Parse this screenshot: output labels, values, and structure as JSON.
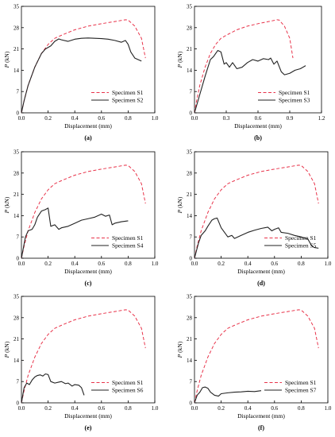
{
  "colors": {
    "reference_series": "#e8334a",
    "specimen_series": "#222222",
    "axes": "#000000"
  },
  "chart_data": [
    {
      "type": "line",
      "panel_label": "(a)",
      "xlabel": "Displacement (mm)",
      "ylabel_italic": "P",
      "ylabel_unit": " (kN)",
      "xlim": [
        0,
        1.0
      ],
      "ylim": [
        0,
        35
      ],
      "xticks": [
        "0.0",
        "0.2",
        "0.4",
        "0.6",
        "0.8",
        "1.0"
      ],
      "yticks": [
        "0",
        "7",
        "14",
        "21",
        "28",
        "35"
      ],
      "grid": false,
      "legend_position": "bottom-right",
      "series": [
        {
          "name": "Specimen S1",
          "style": "dashed",
          "x": [
            0,
            0.02,
            0.05,
            0.1,
            0.15,
            0.2,
            0.25,
            0.3,
            0.4,
            0.5,
            0.6,
            0.7,
            0.78,
            0.8,
            0.85,
            0.9,
            0.93
          ],
          "y": [
            0,
            4,
            9,
            15,
            19.5,
            22.5,
            24.5,
            25.5,
            27.3,
            28.5,
            29.3,
            30,
            30.6,
            30.5,
            28.5,
            24.5,
            18
          ]
        },
        {
          "name": "Specimen S2",
          "style": "solid",
          "x": [
            0,
            0.02,
            0.05,
            0.1,
            0.15,
            0.18,
            0.22,
            0.25,
            0.28,
            0.3,
            0.35,
            0.4,
            0.45,
            0.5,
            0.55,
            0.6,
            0.65,
            0.7,
            0.75,
            0.78,
            0.8,
            0.82,
            0.85,
            0.9
          ],
          "y": [
            0,
            4,
            9,
            15,
            19.5,
            21,
            22,
            23.5,
            24.3,
            24,
            23.5,
            24.2,
            24.5,
            24.6,
            24.5,
            24.4,
            24.2,
            23.8,
            23.2,
            23.8,
            22.5,
            20,
            18,
            17
          ]
        }
      ]
    },
    {
      "type": "line",
      "panel_label": "(b)",
      "xlabel": "Displacement (mm)",
      "ylabel_italic": "P",
      "ylabel_unit": " (kN)",
      "xlim": [
        0,
        1.2
      ],
      "ylim": [
        0,
        35
      ],
      "xticks": [
        "0.0",
        "0.3",
        "0.6",
        "0.9",
        "1.2"
      ],
      "yticks": [
        "0",
        "7",
        "14",
        "21",
        "28",
        "35"
      ],
      "grid": false,
      "legend_position": "bottom-right",
      "series": [
        {
          "name": "Specimen S1",
          "style": "dashed",
          "x": [
            0,
            0.02,
            0.05,
            0.1,
            0.15,
            0.2,
            0.25,
            0.3,
            0.4,
            0.5,
            0.6,
            0.7,
            0.78,
            0.8,
            0.85,
            0.9,
            0.93
          ],
          "y": [
            0,
            4,
            9,
            15,
            19.5,
            22.5,
            24.5,
            25.5,
            27.3,
            28.5,
            29.3,
            30,
            30.6,
            30.5,
            28.5,
            24.5,
            18
          ]
        },
        {
          "name": "Specimen S3",
          "style": "solid",
          "x": [
            0,
            0.05,
            0.1,
            0.15,
            0.18,
            0.2,
            0.22,
            0.25,
            0.28,
            0.3,
            0.33,
            0.36,
            0.4,
            0.45,
            0.5,
            0.55,
            0.6,
            0.65,
            0.7,
            0.72,
            0.75,
            0.78,
            0.82,
            0.85,
            0.9,
            0.95,
            1.0,
            1.05
          ],
          "y": [
            0,
            6,
            12,
            17.5,
            18.5,
            19.5,
            20.5,
            20,
            16,
            16.5,
            15,
            16.5,
            14.5,
            15,
            16.5,
            17.5,
            17,
            17.8,
            17.5,
            18,
            16,
            17,
            13.5,
            12.5,
            13,
            14,
            14.5,
            15.5
          ]
        }
      ]
    },
    {
      "type": "line",
      "panel_label": "(c)",
      "xlabel": "Displacement (mm)",
      "ylabel_italic": "P",
      "ylabel_unit": " (kN)",
      "xlim": [
        0,
        1.0
      ],
      "ylim": [
        0,
        35
      ],
      "xticks": [
        "0.0",
        "0.2",
        "0.4",
        "0.6",
        "0.8",
        "1.0"
      ],
      "yticks": [
        "0",
        "7",
        "14",
        "21",
        "28",
        "35"
      ],
      "grid": false,
      "legend_position": "bottom-right",
      "series": [
        {
          "name": "Specimen S1",
          "style": "dashed",
          "x": [
            0,
            0.02,
            0.05,
            0.1,
            0.15,
            0.2,
            0.25,
            0.3,
            0.4,
            0.5,
            0.6,
            0.7,
            0.78,
            0.8,
            0.85,
            0.9,
            0.93
          ],
          "y": [
            0,
            4,
            9,
            15,
            19.5,
            22.5,
            24.5,
            25.5,
            27.3,
            28.5,
            29.3,
            30,
            30.6,
            30.5,
            28.5,
            24.5,
            18
          ]
        },
        {
          "name": "Specimen S4",
          "style": "solid",
          "x": [
            0,
            0.03,
            0.05,
            0.08,
            0.1,
            0.12,
            0.15,
            0.18,
            0.2,
            0.22,
            0.25,
            0.28,
            0.3,
            0.35,
            0.4,
            0.45,
            0.5,
            0.55,
            0.6,
            0.63,
            0.66,
            0.68,
            0.7,
            0.75,
            0.8
          ],
          "y": [
            0,
            7,
            9,
            9.5,
            11,
            13.5,
            15.5,
            16,
            16.5,
            10.5,
            11,
            9.5,
            10,
            10.5,
            11.5,
            12.5,
            13,
            13.5,
            14.5,
            13.8,
            14.2,
            11,
            11.5,
            12,
            12.3
          ]
        }
      ]
    },
    {
      "type": "line",
      "panel_label": "(d)",
      "xlabel": "Displacement (mm)",
      "ylabel_italic": "P",
      "ylabel_unit": " (kN)",
      "xlim": [
        0,
        1.0
      ],
      "ylim": [
        0,
        35
      ],
      "xticks": [
        "0.0",
        "0.2",
        "0.4",
        "0.6",
        "0.8",
        "1.0"
      ],
      "yticks": [
        "0",
        "7",
        "14",
        "21",
        "28",
        "35"
      ],
      "grid": false,
      "legend_position": "bottom-right",
      "series": [
        {
          "name": "Specimen S1",
          "style": "dashed",
          "x": [
            0,
            0.02,
            0.05,
            0.1,
            0.15,
            0.2,
            0.25,
            0.3,
            0.4,
            0.5,
            0.6,
            0.7,
            0.78,
            0.8,
            0.85,
            0.9,
            0.93
          ],
          "y": [
            0,
            4,
            9,
            15,
            19.5,
            22.5,
            24.5,
            25.5,
            27.3,
            28.5,
            29.3,
            30,
            30.6,
            30.5,
            28.5,
            24.5,
            18
          ]
        },
        {
          "name": "Specimen S5",
          "style": "solid",
          "x": [
            0,
            0.03,
            0.05,
            0.08,
            0.1,
            0.13,
            0.15,
            0.17,
            0.2,
            0.25,
            0.28,
            0.3,
            0.35,
            0.4,
            0.45,
            0.5,
            0.55,
            0.58,
            0.6,
            0.63,
            0.65,
            0.7,
            0.75,
            0.8,
            0.85,
            0.88,
            0.9,
            0.93
          ],
          "y": [
            0,
            5,
            7.5,
            9,
            10.5,
            12.5,
            13,
            13.2,
            10,
            7,
            7.5,
            6.5,
            7.5,
            8.5,
            9.2,
            9.8,
            10.2,
            9,
            9.5,
            10,
            8.5,
            8.2,
            7.5,
            7,
            6.3,
            4,
            3.5,
            3.3
          ]
        }
      ]
    },
    {
      "type": "line",
      "panel_label": "(e)",
      "xlabel": "Displacement (mm)",
      "ylabel_italic": "P",
      "ylabel_unit": " (kN)",
      "xlim": [
        0,
        1.0
      ],
      "ylim": [
        0,
        35
      ],
      "xticks": [
        "0.0",
        "0.2",
        "0.4",
        "0.6",
        "0.8",
        "1.0"
      ],
      "yticks": [
        "0",
        "7",
        "14",
        "21",
        "28",
        "35"
      ],
      "grid": false,
      "legend_position": "bottom-right",
      "series": [
        {
          "name": "Specimen S1",
          "style": "dashed",
          "x": [
            0,
            0.02,
            0.05,
            0.1,
            0.15,
            0.2,
            0.25,
            0.3,
            0.4,
            0.5,
            0.6,
            0.7,
            0.78,
            0.8,
            0.85,
            0.9,
            0.93
          ],
          "y": [
            0,
            4,
            9,
            15,
            19.5,
            22.5,
            24.5,
            25.5,
            27.3,
            28.5,
            29.3,
            30,
            30.6,
            30.5,
            28.5,
            24.5,
            18
          ]
        },
        {
          "name": "Specimen S6",
          "style": "solid",
          "x": [
            0,
            0.02,
            0.04,
            0.06,
            0.08,
            0.1,
            0.12,
            0.14,
            0.16,
            0.18,
            0.2,
            0.22,
            0.25,
            0.28,
            0.3,
            0.33,
            0.35,
            0.38,
            0.4,
            0.43,
            0.45,
            0.47
          ],
          "y": [
            0,
            5,
            6.5,
            6,
            7.5,
            8.5,
            9,
            9.2,
            8.8,
            9.5,
            9.3,
            7,
            6.5,
            6.8,
            7,
            6.3,
            6.5,
            5.5,
            6,
            5.8,
            5,
            2.5
          ]
        }
      ]
    },
    {
      "type": "line",
      "panel_label": "(f)",
      "xlabel": "Displacement (mm)",
      "ylabel_italic": "P",
      "ylabel_unit": " (kN)",
      "xlim": [
        0,
        1.0
      ],
      "ylim": [
        0,
        35
      ],
      "xticks": [
        "0.0",
        "0.2",
        "0.4",
        "0.6",
        "0.8",
        "1.0"
      ],
      "yticks": [
        "0",
        "7",
        "14",
        "21",
        "28",
        "35"
      ],
      "grid": false,
      "legend_position": "bottom-right",
      "series": [
        {
          "name": "Specimen S1",
          "style": "dashed",
          "x": [
            0,
            0.02,
            0.05,
            0.1,
            0.15,
            0.2,
            0.25,
            0.3,
            0.4,
            0.5,
            0.6,
            0.7,
            0.78,
            0.8,
            0.85,
            0.9,
            0.93
          ],
          "y": [
            0,
            4,
            9,
            15,
            19.5,
            22.5,
            24.5,
            25.5,
            27.3,
            28.5,
            29.3,
            30,
            30.6,
            30.5,
            28.5,
            24.5,
            18
          ]
        },
        {
          "name": "Specimen S7",
          "style": "solid",
          "x": [
            0,
            0.02,
            0.04,
            0.06,
            0.08,
            0.1,
            0.12,
            0.15,
            0.18,
            0.2,
            0.25,
            0.3,
            0.35,
            0.4,
            0.45,
            0.5
          ],
          "y": [
            0,
            2.5,
            3.5,
            5,
            5.2,
            4.8,
            3.5,
            2.5,
            2.2,
            3,
            3.3,
            3.5,
            3.6,
            3.8,
            3.7,
            4
          ]
        }
      ]
    }
  ]
}
